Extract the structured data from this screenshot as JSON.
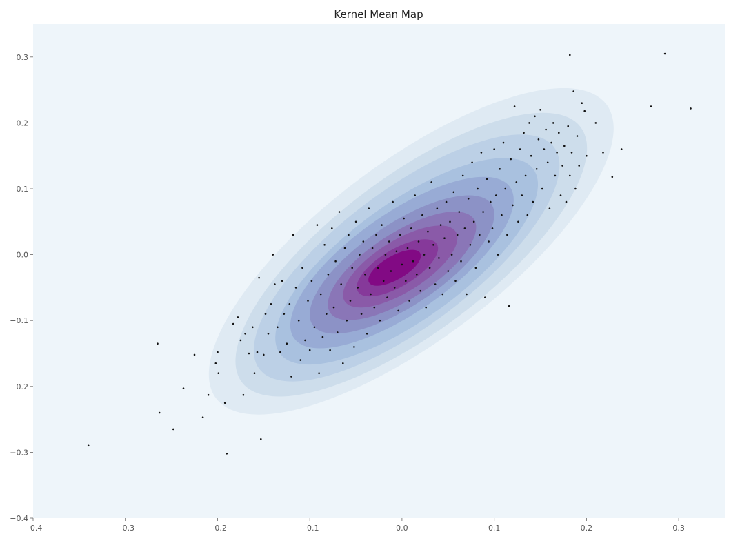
{
  "chart_data": {
    "type": "contour",
    "title": "Kernel Mean Map",
    "xlabel": "",
    "ylabel": "",
    "xlim": [
      -0.4,
      0.35
    ],
    "ylim": [
      -0.4,
      0.35
    ],
    "xticks": [
      -0.4,
      -0.3,
      -0.2,
      -0.1,
      0.0,
      0.1,
      0.2,
      0.3
    ],
    "xtick_labels": [
      "−0.4",
      "−0.3",
      "−0.2",
      "−0.1",
      "0.0",
      "0.1",
      "0.2",
      "0.3"
    ],
    "yticks": [
      -0.4,
      -0.3,
      -0.2,
      -0.1,
      0.0,
      0.1,
      0.2,
      0.3
    ],
    "ytick_labels": [
      "−0.4",
      "−0.3",
      "−0.2",
      "−0.1",
      "0.0",
      "0.1",
      "0.2",
      "0.3"
    ],
    "grid": false,
    "colormap": "BuPu",
    "background_color": "#eef5fa",
    "point_color": "#111111",
    "levels": [
      {
        "level": 1,
        "center": [
          0.01,
          0.005
        ],
        "rx": 0.265,
        "ry": 0.135,
        "angle_deg": 37,
        "color": "#dfeaf3"
      },
      {
        "level": 2,
        "center": [
          0.01,
          0.0
        ],
        "rx": 0.23,
        "ry": 0.118,
        "angle_deg": 37,
        "color": "#cdddeb"
      },
      {
        "level": 3,
        "center": [
          0.005,
          -0.005
        ],
        "rx": 0.2,
        "ry": 0.103,
        "angle_deg": 37,
        "color": "#bcd0e6"
      },
      {
        "level": 4,
        "center": [
          0.005,
          -0.01
        ],
        "rx": 0.17,
        "ry": 0.088,
        "angle_deg": 36,
        "color": "#a9c1df"
      },
      {
        "level": 5,
        "center": [
          0.0,
          -0.012
        ],
        "rx": 0.143,
        "ry": 0.075,
        "angle_deg": 35,
        "color": "#98abd5"
      },
      {
        "level": 6,
        "center": [
          0.0,
          -0.015
        ],
        "rx": 0.117,
        "ry": 0.062,
        "angle_deg": 34,
        "color": "#8c92c6"
      },
      {
        "level": 7,
        "center": [
          0.0,
          -0.017
        ],
        "rx": 0.093,
        "ry": 0.05,
        "angle_deg": 33,
        "color": "#8a76b7"
      },
      {
        "level": 8,
        "center": [
          -0.002,
          -0.018
        ],
        "rx": 0.071,
        "ry": 0.039,
        "angle_deg": 32,
        "color": "#8a5aa8"
      },
      {
        "level": 9,
        "center": [
          -0.005,
          -0.02
        ],
        "rx": 0.05,
        "ry": 0.028,
        "angle_deg": 31,
        "color": "#86399a"
      },
      {
        "level": 10,
        "center": [
          -0.008,
          -0.02
        ],
        "rx": 0.032,
        "ry": 0.018,
        "angle_deg": 30,
        "color": "#820a84"
      }
    ],
    "points": [
      [
        -0.34,
        -0.29
      ],
      [
        -0.265,
        -0.135
      ],
      [
        -0.263,
        -0.24
      ],
      [
        -0.248,
        -0.265
      ],
      [
        -0.237,
        -0.203
      ],
      [
        -0.225,
        -0.152
      ],
      [
        -0.216,
        -0.247
      ],
      [
        -0.21,
        -0.213
      ],
      [
        -0.202,
        -0.165
      ],
      [
        -0.199,
        -0.18
      ],
      [
        -0.2,
        -0.148
      ],
      [
        -0.192,
        -0.225
      ],
      [
        -0.19,
        -0.302
      ],
      [
        -0.183,
        -0.105
      ],
      [
        -0.178,
        -0.095
      ],
      [
        -0.175,
        -0.13
      ],
      [
        -0.172,
        -0.213
      ],
      [
        -0.17,
        -0.12
      ],
      [
        -0.166,
        -0.15
      ],
      [
        -0.162,
        -0.11
      ],
      [
        -0.16,
        -0.18
      ],
      [
        -0.157,
        -0.148
      ],
      [
        -0.155,
        -0.035
      ],
      [
        -0.153,
        -0.28
      ],
      [
        -0.15,
        -0.152
      ],
      [
        -0.148,
        -0.09
      ],
      [
        -0.145,
        -0.12
      ],
      [
        -0.142,
        -0.075
      ],
      [
        -0.14,
        0.0
      ],
      [
        -0.138,
        -0.045
      ],
      [
        -0.135,
        -0.11
      ],
      [
        -0.132,
        -0.148
      ],
      [
        -0.13,
        -0.04
      ],
      [
        -0.128,
        -0.09
      ],
      [
        -0.125,
        -0.135
      ],
      [
        -0.122,
        -0.075
      ],
      [
        -0.12,
        -0.185
      ],
      [
        -0.118,
        0.03
      ],
      [
        -0.115,
        -0.05
      ],
      [
        -0.112,
        -0.1
      ],
      [
        -0.11,
        -0.16
      ],
      [
        -0.108,
        -0.02
      ],
      [
        -0.105,
        -0.13
      ],
      [
        -0.102,
        -0.07
      ],
      [
        -0.1,
        -0.145
      ],
      [
        -0.098,
        -0.04
      ],
      [
        -0.095,
        -0.11
      ],
      [
        -0.092,
        0.045
      ],
      [
        -0.09,
        -0.18
      ],
      [
        -0.088,
        -0.06
      ],
      [
        -0.086,
        -0.125
      ],
      [
        -0.084,
        0.015
      ],
      [
        -0.082,
        -0.09
      ],
      [
        -0.08,
        -0.03
      ],
      [
        -0.078,
        -0.145
      ],
      [
        -0.076,
        0.04
      ],
      [
        -0.074,
        -0.08
      ],
      [
        -0.072,
        -0.01
      ],
      [
        -0.07,
        -0.118
      ],
      [
        -0.068,
        0.065
      ],
      [
        -0.066,
        -0.045
      ],
      [
        -0.064,
        -0.165
      ],
      [
        -0.062,
        0.01
      ],
      [
        -0.06,
        -0.1
      ],
      [
        -0.058,
        0.03
      ],
      [
        -0.056,
        -0.07
      ],
      [
        -0.054,
        -0.02
      ],
      [
        -0.052,
        -0.14
      ],
      [
        -0.05,
        0.05
      ],
      [
        -0.048,
        -0.05
      ],
      [
        -0.046,
        0.0
      ],
      [
        -0.044,
        -0.09
      ],
      [
        -0.042,
        0.02
      ],
      [
        -0.04,
        -0.03
      ],
      [
        -0.038,
        -0.12
      ],
      [
        -0.036,
        0.07
      ],
      [
        -0.034,
        -0.06
      ],
      [
        -0.032,
        0.01
      ],
      [
        -0.03,
        -0.08
      ],
      [
        -0.028,
        0.03
      ],
      [
        -0.026,
        -0.02
      ],
      [
        -0.024,
        -0.1
      ],
      [
        -0.022,
        0.045
      ],
      [
        -0.02,
        -0.04
      ],
      [
        -0.018,
        0.0
      ],
      [
        -0.016,
        -0.065
      ],
      [
        -0.014,
        0.02
      ],
      [
        -0.012,
        -0.025
      ],
      [
        -0.01,
        0.08
      ],
      [
        -0.008,
        -0.05
      ],
      [
        -0.006,
        0.005
      ],
      [
        -0.004,
        -0.085
      ],
      [
        -0.002,
        0.03
      ],
      [
        0.0,
        -0.015
      ],
      [
        0.002,
        0.055
      ],
      [
        0.004,
        -0.04
      ],
      [
        0.006,
        0.01
      ],
      [
        0.008,
        -0.07
      ],
      [
        0.01,
        0.04
      ],
      [
        0.012,
        -0.01
      ],
      [
        0.014,
        0.09
      ],
      [
        0.016,
        -0.03
      ],
      [
        0.018,
        0.02
      ],
      [
        0.02,
        -0.055
      ],
      [
        0.022,
        0.06
      ],
      [
        0.024,
        0.0
      ],
      [
        0.026,
        -0.08
      ],
      [
        0.028,
        0.035
      ],
      [
        0.03,
        -0.02
      ],
      [
        0.032,
        0.11
      ],
      [
        0.034,
        0.015
      ],
      [
        0.036,
        -0.045
      ],
      [
        0.038,
        0.07
      ],
      [
        0.04,
        -0.005
      ],
      [
        0.042,
        0.045
      ],
      [
        0.044,
        -0.06
      ],
      [
        0.046,
        0.025
      ],
      [
        0.048,
        0.08
      ],
      [
        0.05,
        -0.025
      ],
      [
        0.052,
        0.05
      ],
      [
        0.054,
        0.0
      ],
      [
        0.056,
        0.095
      ],
      [
        0.058,
        -0.04
      ],
      [
        0.06,
        0.03
      ],
      [
        0.062,
        0.065
      ],
      [
        0.064,
        -0.01
      ],
      [
        0.066,
        0.12
      ],
      [
        0.068,
        0.04
      ],
      [
        0.07,
        -0.06
      ],
      [
        0.072,
        0.085
      ],
      [
        0.074,
        0.015
      ],
      [
        0.076,
        0.14
      ],
      [
        0.078,
        0.05
      ],
      [
        0.08,
        -0.02
      ],
      [
        0.082,
        0.1
      ],
      [
        0.084,
        0.03
      ],
      [
        0.086,
        0.155
      ],
      [
        0.088,
        0.065
      ],
      [
        0.09,
        -0.065
      ],
      [
        0.092,
        0.115
      ],
      [
        0.094,
        0.02
      ],
      [
        0.096,
        0.08
      ],
      [
        0.098,
        0.04
      ],
      [
        0.1,
        0.16
      ],
      [
        0.102,
        0.09
      ],
      [
        0.104,
        0.0
      ],
      [
        0.106,
        0.13
      ],
      [
        0.108,
        0.06
      ],
      [
        0.11,
        0.17
      ],
      [
        0.112,
        0.1
      ],
      [
        0.114,
        0.03
      ],
      [
        0.116,
        -0.078
      ],
      [
        0.118,
        0.145
      ],
      [
        0.12,
        0.075
      ],
      [
        0.122,
        0.225
      ],
      [
        0.124,
        0.11
      ],
      [
        0.126,
        0.05
      ],
      [
        0.128,
        0.16
      ],
      [
        0.13,
        0.09
      ],
      [
        0.132,
        0.185
      ],
      [
        0.134,
        0.12
      ],
      [
        0.136,
        0.06
      ],
      [
        0.138,
        0.2
      ],
      [
        0.14,
        0.15
      ],
      [
        0.142,
        0.08
      ],
      [
        0.144,
        0.21
      ],
      [
        0.146,
        0.13
      ],
      [
        0.148,
        0.175
      ],
      [
        0.15,
        0.22
      ],
      [
        0.152,
        0.1
      ],
      [
        0.154,
        0.16
      ],
      [
        0.156,
        0.19
      ],
      [
        0.158,
        0.14
      ],
      [
        0.16,
        0.07
      ],
      [
        0.162,
        0.17
      ],
      [
        0.164,
        0.2
      ],
      [
        0.166,
        0.12
      ],
      [
        0.168,
        0.155
      ],
      [
        0.17,
        0.185
      ],
      [
        0.172,
        0.09
      ],
      [
        0.174,
        0.135
      ],
      [
        0.176,
        0.165
      ],
      [
        0.178,
        0.08
      ],
      [
        0.18,
        0.195
      ],
      [
        0.182,
        0.12
      ],
      [
        0.182,
        0.303
      ],
      [
        0.184,
        0.155
      ],
      [
        0.186,
        0.248
      ],
      [
        0.188,
        0.1
      ],
      [
        0.19,
        0.18
      ],
      [
        0.192,
        0.135
      ],
      [
        0.195,
        0.23
      ],
      [
        0.198,
        0.218
      ],
      [
        0.2,
        0.15
      ],
      [
        0.21,
        0.2
      ],
      [
        0.218,
        0.155
      ],
      [
        0.228,
        0.118
      ],
      [
        0.238,
        0.16
      ],
      [
        0.27,
        0.225
      ],
      [
        0.285,
        0.305
      ],
      [
        0.313,
        0.222
      ]
    ]
  }
}
